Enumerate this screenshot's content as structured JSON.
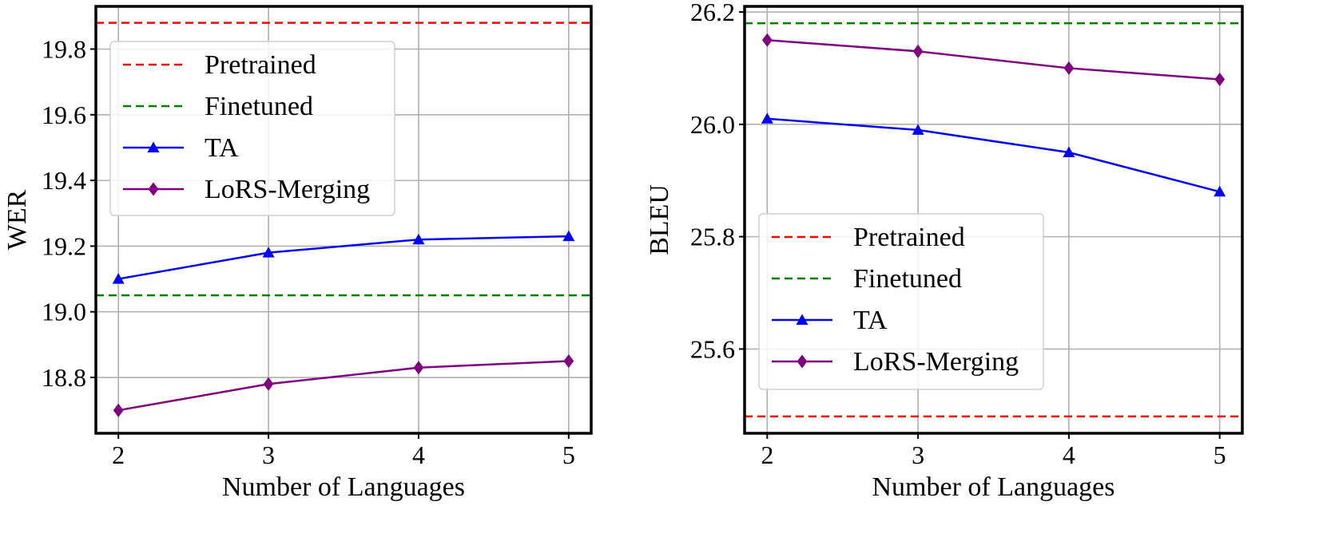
{
  "chart_data": [
    {
      "type": "line",
      "xlabel": "Number of Languages",
      "ylabel": "WER",
      "x": [
        2,
        3,
        4,
        5
      ],
      "xlim": [
        1.85,
        5.15
      ],
      "ylim": [
        18.63,
        19.93
      ],
      "yticks": [
        18.8,
        19.0,
        19.2,
        19.4,
        19.6,
        19.8
      ],
      "grid": true,
      "legend_position": "upper-left",
      "reference_lines": [
        {
          "name": "Pretrained",
          "value": 19.88,
          "color": "#ff0000",
          "style": "dashed"
        },
        {
          "name": "Finetuned",
          "value": 19.05,
          "color": "#008000",
          "style": "dashed"
        }
      ],
      "series": [
        {
          "name": "TA",
          "values": [
            19.1,
            19.18,
            19.22,
            19.23
          ],
          "color": "#0000ff",
          "marker": "triangle"
        },
        {
          "name": "LoRS-Merging",
          "values": [
            18.7,
            18.78,
            18.83,
            18.85
          ],
          "color": "#800080",
          "marker": "diamond"
        }
      ]
    },
    {
      "type": "line",
      "xlabel": "Number of Languages",
      "ylabel": "BLEU",
      "x": [
        2,
        3,
        4,
        5
      ],
      "xlim": [
        1.85,
        5.15
      ],
      "ylim": [
        25.45,
        26.21
      ],
      "yticks": [
        25.6,
        25.8,
        26.0,
        26.2
      ],
      "grid": true,
      "legend_position": "lower-left",
      "reference_lines": [
        {
          "name": "Pretrained",
          "value": 25.48,
          "color": "#ff0000",
          "style": "dashed"
        },
        {
          "name": "Finetuned",
          "value": 26.18,
          "color": "#008000",
          "style": "dashed"
        }
      ],
      "series": [
        {
          "name": "TA",
          "values": [
            26.01,
            25.99,
            25.95,
            25.88
          ],
          "color": "#0000ff",
          "marker": "triangle"
        },
        {
          "name": "LoRS-Merging",
          "values": [
            26.15,
            26.13,
            26.1,
            26.08
          ],
          "color": "#800080",
          "marker": "diamond"
        }
      ]
    }
  ]
}
